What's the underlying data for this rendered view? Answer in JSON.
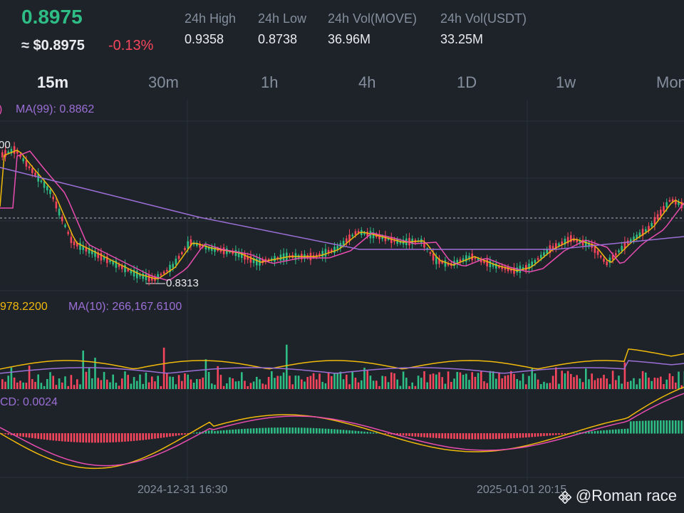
{
  "header": {
    "price": "0.8975",
    "approx_usd": "≈ $0.8975",
    "change": "-0.13%",
    "stats": [
      {
        "label": "24h High",
        "value": "0.9358"
      },
      {
        "label": "24h Low",
        "value": "0.8738"
      },
      {
        "label": "24h Vol(MOVE)",
        "value": "36.96M"
      },
      {
        "label": "24h Vol(USDT)",
        "value": "33.25M"
      }
    ]
  },
  "tabs": [
    "15m",
    "30m",
    "1h",
    "4h",
    "1D",
    "1w",
    "Mon"
  ],
  "active_tab": "15m",
  "indicators": {
    "price_ma_left": ")",
    "price_ma99": "MA(99): 0.8862",
    "vol_ma_left": "978.2200",
    "vol_ma10": "MA(10): 266,167.6100",
    "macd": "CD: 0.0024"
  },
  "annotations": {
    "high_marker": "00",
    "low_marker": "0.8313"
  },
  "time_axis": [
    "2024-12-31 16:30",
    "2025-01-01 20:15"
  ],
  "watermark": "@Roman race",
  "colors": {
    "up": "#2ebd85",
    "down": "#f6465d",
    "ma_yellow": "#f0b90b",
    "ma_pink": "#e84cb0",
    "ma_purple": "#9b6fd6"
  }
}
